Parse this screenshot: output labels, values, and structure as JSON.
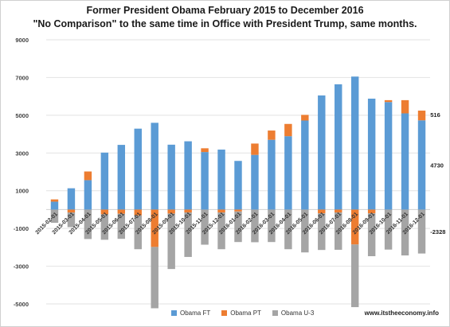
{
  "chart_data": {
    "type": "bar",
    "stacked": true,
    "title": "Former President Obama February 2015 to December 2016",
    "subtitle": "\"No Comparison\" to the same time in Office with President Trump, same months.",
    "categories": [
      "2015-02-01",
      "2015-03-01",
      "2015-04-01",
      "2015-05-01",
      "2015-06-01",
      "2015-07-01",
      "2015-08-01",
      "2015-09-01",
      "2015-10-01",
      "2015-11-01",
      "2015-12-01",
      "2016-01-01",
      "2016-02-01",
      "2016-03-01",
      "2016-04-01",
      "2016-05-01",
      "2016-06-01",
      "2016-07-01",
      "2016-08-01",
      "2016-09-01",
      "2016-10-01",
      "2016-11-01",
      "2016-12-01"
    ],
    "series": [
      {
        "name": "Obama FT",
        "color": "#5b9bd5",
        "values": [
          420,
          1130,
          1560,
          3020,
          3430,
          4290,
          4600,
          3440,
          3620,
          3050,
          3180,
          2580,
          2900,
          3700,
          3890,
          4720,
          6050,
          6640,
          7050,
          5880,
          5700,
          5100,
          4730
        ]
      },
      {
        "name": "Obama PT",
        "color": "#ed7d31",
        "values": [
          120,
          -150,
          460,
          -250,
          -220,
          -310,
          -1980,
          -210,
          -150,
          200,
          -150,
          -100,
          600,
          490,
          650,
          300,
          -200,
          -150,
          -1850,
          -200,
          100,
          700,
          516
        ]
      },
      {
        "name": "Obama U-3",
        "color": "#a5a5a5",
        "values": [
          -700,
          -780,
          -1560,
          -1350,
          -1330,
          -1790,
          -3250,
          -2940,
          -2360,
          -1860,
          -1950,
          -1620,
          -1730,
          -1720,
          -2100,
          -2270,
          -1940,
          -1980,
          -3320,
          -2270,
          -2120,
          -2430,
          -2328
        ]
      }
    ],
    "y_ticks": [
      "9000",
      "7000",
      "5000",
      "3000",
      "1000",
      "-1000",
      "-3000",
      "-5000"
    ],
    "ylim": [
      -5000,
      9000
    ],
    "data_labels": {
      "pt": "516",
      "ft": "4730",
      "u3": "-2328"
    },
    "legend_position": "bottom",
    "grid": true
  },
  "legend": {
    "items": [
      {
        "label": "Obama FT",
        "color": "#5b9bd5"
      },
      {
        "label": "Obama PT",
        "color": "#ed7d31"
      },
      {
        "label": "Obama U-3",
        "color": "#a5a5a5"
      }
    ]
  },
  "credit": "www.itstheeconomy.info"
}
